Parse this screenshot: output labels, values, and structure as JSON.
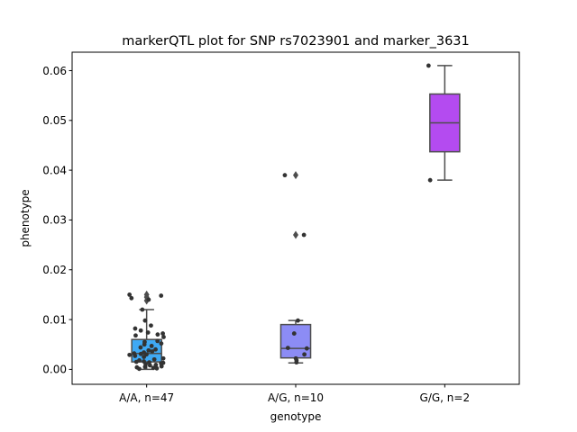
{
  "chart_data": {
    "type": "box",
    "title": "markerQTL plot for SNP rs7023901 and marker_3631",
    "xlabel": "genotype",
    "ylabel": "phenotype",
    "ylim": [
      -0.003,
      0.0637
    ],
    "y_ticks": [
      0.0,
      0.01,
      0.02,
      0.03,
      0.04,
      0.05,
      0.06
    ],
    "y_tick_labels": [
      "0.00",
      "0.01",
      "0.02",
      "0.03",
      "0.04",
      "0.05",
      "0.06"
    ],
    "categories": [
      "A/A, n=47",
      "A/G, n=10",
      "G/G, n=2"
    ],
    "grid": false,
    "legend": "none",
    "boxes": [
      {
        "category": "A/A, n=47",
        "color": "#3fa9f5",
        "q1": 0.0015,
        "median": 0.0032,
        "q3": 0.006,
        "whisker_low": 0.0,
        "whisker_high": 0.012,
        "outliers": [
          0.0138,
          0.0145,
          0.015
        ],
        "points": [
          0.015,
          0.0148,
          0.0143,
          0.014,
          0.012,
          0.0098,
          0.0088,
          0.0082,
          0.0078,
          0.0074,
          0.0072,
          0.007,
          0.0068,
          0.0065,
          0.0057,
          0.0055,
          0.0052,
          0.005,
          0.0047,
          0.0044,
          0.004,
          0.0038,
          0.0036,
          0.0034,
          0.0032,
          0.0031,
          0.003,
          0.0029,
          0.0027,
          0.0025,
          0.0022,
          0.002,
          0.0018,
          0.0016,
          0.0015,
          0.0014,
          0.0013,
          0.0012,
          0.001,
          0.0009,
          0.0008,
          0.0006,
          0.0005,
          0.0004,
          0.0003,
          0.0002,
          0.0001
        ]
      },
      {
        "category": "A/G, n=10",
        "color": "#8c8cf5",
        "q1": 0.0023,
        "median": 0.0042,
        "q3": 0.009,
        "whisker_low": 0.0013,
        "whisker_high": 0.0098,
        "outliers": [
          0.027,
          0.039
        ],
        "points": [
          0.039,
          0.027,
          0.0098,
          0.0072,
          0.0043,
          0.0042,
          0.003,
          0.0022,
          0.0018,
          0.0014
        ]
      },
      {
        "category": "G/G, n=2",
        "color": "#b44bf0",
        "q1": 0.0437,
        "median": 0.0495,
        "q3": 0.0553,
        "whisker_low": 0.038,
        "whisker_high": 0.061,
        "outliers": [],
        "points": [
          0.061,
          0.038
        ]
      }
    ]
  }
}
